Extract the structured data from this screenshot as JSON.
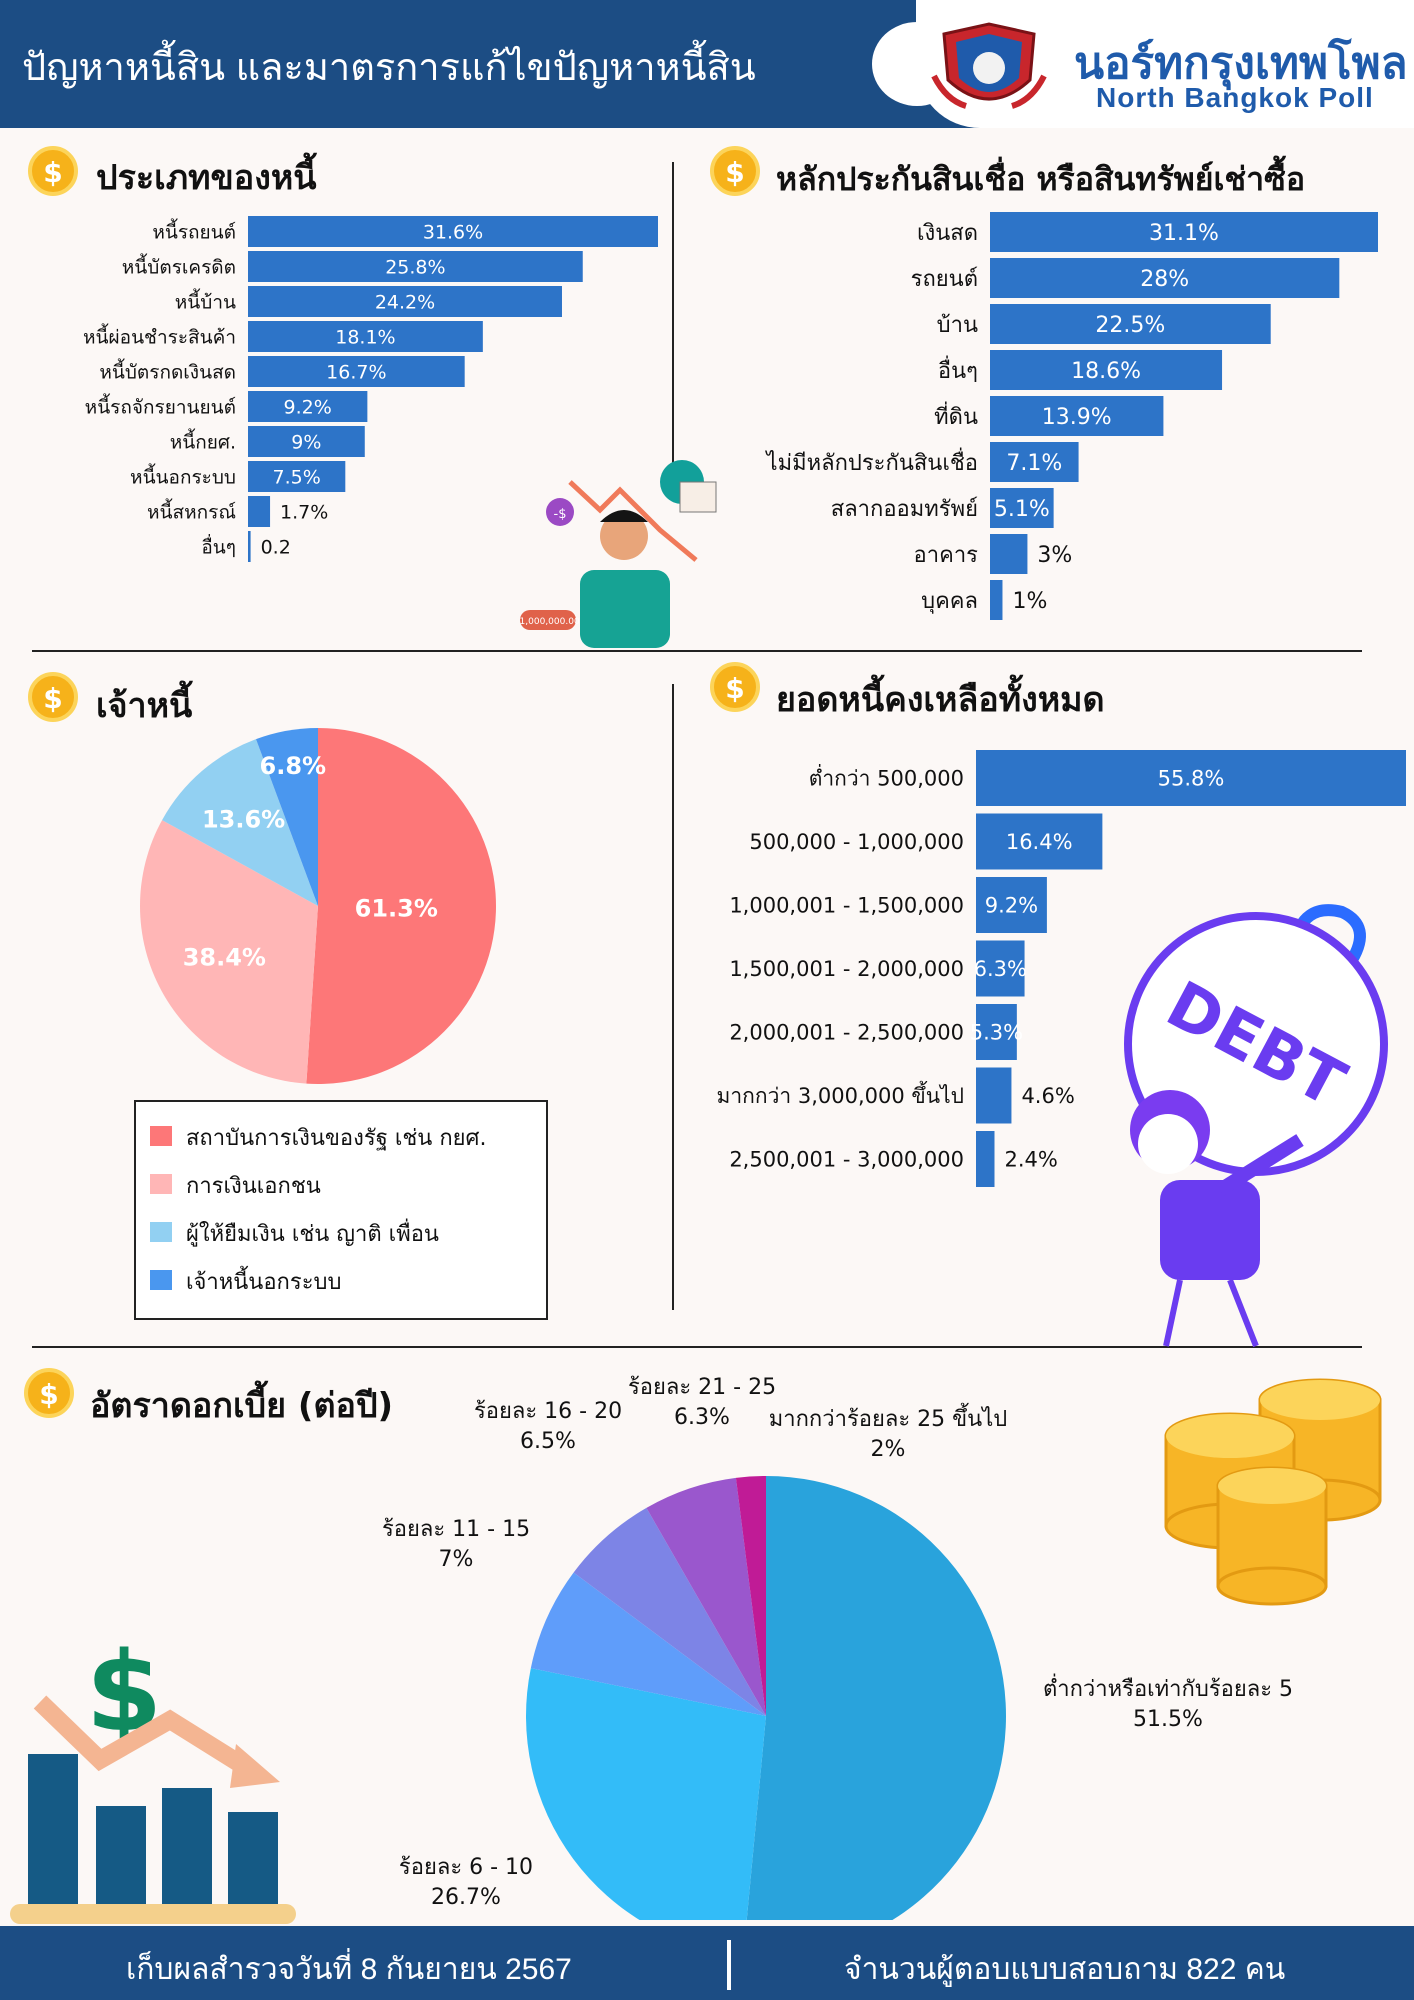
{
  "header": {
    "title": "ปัญหาหนี้สิน และมาตรการแก้ไขปัญหาหนี้สิน",
    "org_name": "นอร์ทกรุงเทพโพล",
    "org_name_en": "North Bangkok Poll"
  },
  "sections": {
    "debt_types_title": "ประเภทของหนี้",
    "collateral_title": "หลักประกันสินเชื่อ หรือสินทรัพย์เช่าซื้อ",
    "creditors_title": "เจ้าหนี้",
    "outstanding_title": "ยอดหนี้คงเหลือทั้งหมด",
    "interest_title": "อัตราดอกเบี้ย (ต่อปี)"
  },
  "illustrations": {
    "debt_ball_text": "DEBT",
    "price_tag": "-1,000,000.00",
    "dollar_bubble": "-$"
  },
  "footer": {
    "survey_date": "เก็บผลสำรวจวันที่ 8 กันยายน 2567",
    "respondents": "จำนวนผู้ตอบแบบสอบถาม 822 คน"
  },
  "colors": {
    "bar": "#2d74c8",
    "header": "#1c4d84",
    "coin": "#f6b21a"
  },
  "chart_data": [
    {
      "type": "bar",
      "orientation": "horizontal",
      "title": "ประเภทของหนี้",
      "unit": "%",
      "categories": [
        "หนี้รถยนต์",
        "หนี้บัตรเครดิต",
        "หนี้บ้าน",
        "หนี้ผ่อนชำระสินค้า",
        "หนี้บัตรกดเงินสด",
        "หนี้รถจักรยานยนต์",
        "หนี้กยศ.",
        "หนี้นอกระบบ",
        "หนี้สหกรณ์",
        "อื่นๆ"
      ],
      "values": [
        31.6,
        25.8,
        24.2,
        18.1,
        16.7,
        9.2,
        9,
        7.5,
        1.7,
        0.2
      ],
      "labels": [
        "31.6%",
        "25.8%",
        "24.2%",
        "18.1%",
        "16.7%",
        "9.2%",
        "9%",
        "7.5%",
        "1.7%",
        "0.2"
      ],
      "xlim": [
        0,
        31.6
      ]
    },
    {
      "type": "bar",
      "orientation": "horizontal",
      "title": "หลักประกันสินเชื่อ หรือสินทรัพย์เช่าซื้อ",
      "unit": "%",
      "categories": [
        "เงินสด",
        "รถยนต์",
        "บ้าน",
        "อื่นๆ",
        "ที่ดิน",
        "ไม่มีหลักประกันสินเชื่อ",
        "สลากออมทรัพย์",
        "อาคาร",
        "บุคคล"
      ],
      "values": [
        31.1,
        28,
        22.5,
        18.6,
        13.9,
        7.1,
        5.1,
        3,
        1
      ],
      "labels": [
        "31.1%",
        "28%",
        "22.5%",
        "18.6%",
        "13.9%",
        "7.1%",
        "5.1%",
        "3%",
        "1%"
      ],
      "xlim": [
        0,
        31.1
      ]
    },
    {
      "type": "pie",
      "title": "เจ้าหนี้",
      "unit": "%",
      "categories": [
        "สถาบันการเงินของรัฐ เช่น กยศ.",
        "การเงินเอกชน",
        "ผู้ให้ยืมเงิน เช่น ญาติ เพื่อน",
        "เจ้าหนี้นอกระบบ"
      ],
      "values": [
        61.3,
        38.4,
        13.6,
        6.8
      ],
      "labels": [
        "61.3%",
        "38.4%",
        "13.6%",
        "6.8%"
      ],
      "colors": [
        "#fd7778",
        "#ffb6b6",
        "#92d0f2",
        "#4a97ef"
      ],
      "legend": "bottom"
    },
    {
      "type": "bar",
      "orientation": "horizontal",
      "title": "ยอดหนี้คงเหลือทั้งหมด",
      "unit": "%",
      "categories": [
        "ต่ำกว่า 500,000",
        "500,000 - 1,000,000",
        "1,000,001 - 1,500,000",
        "1,500,001 - 2,000,000",
        "2,000,001 - 2,500,000",
        "มากกว่า 3,000,000 ขึ้นไป",
        "2,500,001 - 3,000,000"
      ],
      "values": [
        55.8,
        16.4,
        9.2,
        6.3,
        5.3,
        4.6,
        2.4
      ],
      "labels": [
        "55.8%",
        "16.4%",
        "9.2%",
        "6.3%",
        "5.3%",
        "4.6%",
        "2.4%"
      ],
      "xlim": [
        0,
        55.8
      ]
    },
    {
      "type": "pie",
      "title": "อัตราดอกเบี้ย (ต่อปี)",
      "unit": "%",
      "categories": [
        "ต่ำกว่าหรือเท่ากับร้อยละ 5",
        "ร้อยละ 6 - 10",
        "ร้อยละ 11 - 15",
        "ร้อยละ 16 - 20",
        "ร้อยละ 21 - 25",
        "มากกว่าร้อยละ 25 ขึ้นไป"
      ],
      "values": [
        51.5,
        26.7,
        7,
        6.5,
        6.3,
        2
      ],
      "labels": [
        "51.5%",
        "26.7%",
        "7%",
        "6.5%",
        "6.3%",
        "2%"
      ],
      "colors": [
        "#29a3dc",
        "#33bcf8",
        "#5f9dfa",
        "#7d84e6",
        "#9a57cd",
        "#c01b96"
      ]
    }
  ]
}
